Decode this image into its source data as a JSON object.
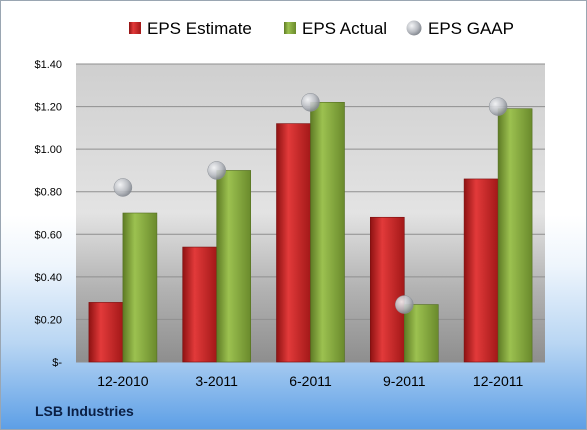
{
  "company": "LSB Industries",
  "colors": {
    "estimate": "#d42a2a",
    "actual": "#84a83c",
    "gaap": "#b9bcc2"
  },
  "chart_data": {
    "type": "bar",
    "categories": [
      "12-2010",
      "3-2011",
      "6-2011",
      "9-2011",
      "12-2011"
    ],
    "series": [
      {
        "name": "EPS Estimate",
        "type": "bar",
        "values": [
          0.28,
          0.54,
          1.12,
          0.68,
          0.86
        ]
      },
      {
        "name": "EPS Actual",
        "type": "bar",
        "values": [
          0.7,
          0.9,
          1.22,
          0.27,
          1.19
        ]
      },
      {
        "name": "EPS GAAP",
        "type": "scatter",
        "values": [
          0.82,
          0.9,
          1.22,
          0.27,
          1.2
        ]
      }
    ],
    "y_ticks": [
      {
        "value": 0,
        "label": "$-"
      },
      {
        "value": 0.2,
        "label": "$0.20"
      },
      {
        "value": 0.4,
        "label": "$0.40"
      },
      {
        "value": 0.6,
        "label": "$0.60"
      },
      {
        "value": 0.8,
        "label": "$0.80"
      },
      {
        "value": 1.0,
        "label": "$1.00"
      },
      {
        "value": 1.2,
        "label": "$1.20"
      },
      {
        "value": 1.4,
        "label": "$1.40"
      }
    ],
    "ylim": [
      0,
      1.4
    ],
    "grid": true,
    "legend_position": "top"
  }
}
